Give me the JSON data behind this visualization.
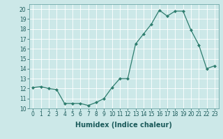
{
  "x": [
    0,
    1,
    2,
    3,
    4,
    5,
    6,
    7,
    8,
    9,
    10,
    11,
    12,
    13,
    14,
    15,
    16,
    17,
    18,
    19,
    20,
    21,
    22,
    23
  ],
  "y": [
    12.1,
    12.2,
    12.0,
    11.9,
    10.5,
    10.5,
    10.5,
    10.3,
    10.6,
    11.0,
    12.1,
    13.0,
    13.0,
    16.5,
    17.5,
    18.5,
    19.9,
    19.3,
    19.8,
    19.8,
    17.9,
    16.4,
    14.0,
    14.3
  ],
  "line_color": "#2e7d6e",
  "marker": "D",
  "marker_size": 2.0,
  "xlim": [
    -0.5,
    23.5
  ],
  "ylim": [
    10,
    20.5
  ],
  "yticks": [
    10,
    11,
    12,
    13,
    14,
    15,
    16,
    17,
    18,
    19,
    20
  ],
  "xticks": [
    0,
    1,
    2,
    3,
    4,
    5,
    6,
    7,
    8,
    9,
    10,
    11,
    12,
    13,
    14,
    15,
    16,
    17,
    18,
    19,
    20,
    21,
    22,
    23
  ],
  "bg_color": "#cce8e8",
  "grid_color": "#b0d0d0",
  "tick_label_fontsize": 5.5,
  "xlabel": "Humidex (Indice chaleur)",
  "xlabel_fontsize": 7.0,
  "linewidth": 0.9
}
